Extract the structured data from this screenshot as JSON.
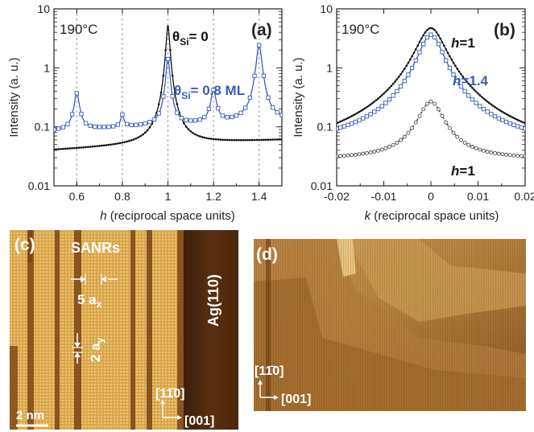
{
  "chart_data": [
    {
      "type": "line",
      "panel_label": "(a)",
      "temperature": "190°C",
      "xlabel_var": "h",
      "xlabel_rest": " (reciprocal space units)",
      "ylabel": "Intensity (a. u.)",
      "xlim": [
        0.5,
        1.5
      ],
      "ylim": [
        0.01,
        10
      ],
      "yscale": "log",
      "xticks": [
        "0.6",
        "0.8",
        "1",
        "1.2",
        "1.4"
      ],
      "yticks": [
        "0.01",
        "0.1",
        "1",
        "10"
      ],
      "dashed_lines_x": [
        0.6,
        0.8,
        1.0,
        1.2,
        1.4
      ],
      "series": [
        {
          "name": "θSi= 0",
          "color": "#111111",
          "marker": "dot",
          "peaks": {
            "base": 0.04,
            "slope": 0.02,
            "peaks": [
              [
                1.0,
                5.0,
                0.008
              ]
            ]
          }
        },
        {
          "name": "θSi= 0.8 ML",
          "color": "#3a5cb8",
          "marker": "square",
          "peaks": {
            "base": 0.085,
            "slope": 0.04,
            "peaks": [
              [
                0.6,
                0.28,
                0.012
              ],
              [
                0.8,
                0.06,
                0.008
              ],
              [
                1.0,
                1.3,
                0.009
              ],
              [
                1.2,
                0.3,
                0.012
              ],
              [
                1.4,
                2.3,
                0.012
              ]
            ]
          }
        }
      ],
      "annotations": {
        "theta0": {
          "sym": "θ",
          "sub": "Si",
          "rest": "= 0"
        },
        "theta08": {
          "sym": "θ",
          "sub": "Si",
          "rest": "= 0.8 ML"
        }
      }
    },
    {
      "type": "line",
      "panel_label": "(b)",
      "temperature": "190°C",
      "xlabel_var": "k",
      "xlabel_rest": " (reciprocal space units)",
      "ylabel": "Intensity (a. u.)",
      "xlim": [
        -0.02,
        0.02
      ],
      "ylim": [
        0.01,
        10
      ],
      "yscale": "log",
      "xticks": [
        "-0.02",
        "-0.01",
        "0",
        "0.01",
        "0.02"
      ],
      "yticks": [
        "0.01",
        "0.1",
        "1",
        "10"
      ],
      "series": [
        {
          "name": "h=1",
          "color": "#111111",
          "marker": "dot",
          "style": "solid",
          "lorentz": {
            "base": 0.025,
            "amp": 4.7,
            "w": 0.0028
          }
        },
        {
          "name": "h=1.4",
          "color": "#3a5cb8",
          "marker": "square",
          "style": "solid",
          "lorentz": {
            "base": 0.042,
            "amp": 3.6,
            "w": 0.0024
          }
        },
        {
          "name": "h=1",
          "color": "#333333",
          "marker": "open",
          "style": "dashed",
          "lorentz": {
            "base": 0.028,
            "amp": 0.24,
            "w": 0.0025
          }
        }
      ],
      "annotations": {
        "h1_top": {
          "var": "h",
          "rest": "=1"
        },
        "h14": {
          "var": "h",
          "rest": "=1.4"
        },
        "h1_bottom": {
          "var": "h",
          "rest": "=1"
        }
      }
    }
  ],
  "images": {
    "c": {
      "panel_label": "(c)",
      "sanrs": "SANRs",
      "ag": "Ag(110)",
      "ax_label": "5 a",
      "ax_sub": "x",
      "ay_label": "2 a",
      "ay_sub": "y",
      "scale_bar": "2 nm",
      "dir_y": "[11̄0]",
      "dir_x": "[001]"
    },
    "d": {
      "panel_label": "(d)",
      "dir_y": "[11̄0]",
      "dir_x": "[001]"
    }
  },
  "colors": {
    "stm_light": "#e0b156",
    "stm_dark": "#6e3a12",
    "blue": "#3a5cb8"
  }
}
